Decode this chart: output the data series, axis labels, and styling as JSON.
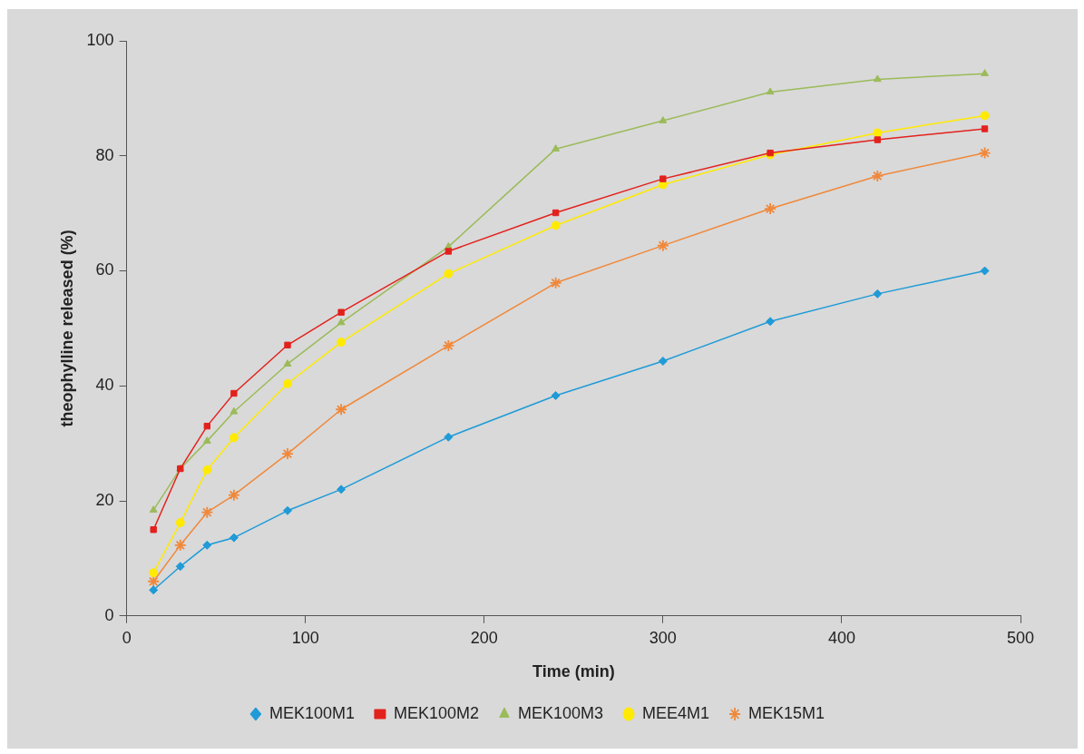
{
  "chart_data": {
    "type": "line",
    "xlabel": "Time (min)",
    "ylabel": "theophylline released (%)",
    "x": [
      15,
      30,
      45,
      60,
      90,
      120,
      180,
      240,
      300,
      360,
      420,
      480
    ],
    "series": [
      {
        "name": "MEK100M1",
        "color": "#1f9bd7",
        "marker": "diamond",
        "values": [
          4.5,
          8.6,
          12.3,
          13.6,
          18.3,
          22,
          31.1,
          38.3,
          44.3,
          51.2,
          56,
          60
        ]
      },
      {
        "name": "MEK100M2",
        "color": "#e3211c",
        "marker": "square",
        "values": [
          15,
          25.6,
          33,
          38.7,
          47.1,
          52.8,
          63.4,
          70.1,
          76,
          80.5,
          82.8,
          84.7
        ]
      },
      {
        "name": "MEK100M3",
        "color": "#9bbb59",
        "marker": "triangle",
        "values": [
          18.4,
          25.6,
          30.4,
          35.5,
          43.8,
          51,
          64.2,
          81.2,
          86.1,
          91.1,
          93.3,
          94.3
        ]
      },
      {
        "name": "MEE4M1",
        "color": "#ffea00",
        "marker": "circle",
        "values": [
          7.5,
          16.2,
          25.4,
          31,
          40.4,
          47.6,
          59.5,
          67.9,
          75,
          80.2,
          84,
          87
        ]
      },
      {
        "name": "MEK15M1",
        "color": "#f0883a",
        "marker": "cross",
        "values": [
          6,
          12.3,
          18,
          21,
          28.2,
          35.9,
          47,
          57.9,
          64.4,
          70.8,
          76.5,
          80.5
        ]
      }
    ],
    "xlim": [
      0,
      500
    ],
    "xticks": [
      0,
      100,
      200,
      300,
      400,
      500
    ],
    "ylim": [
      0,
      100
    ],
    "yticks": [
      0,
      20,
      40,
      60,
      80,
      100
    ],
    "grid": false,
    "legend": "bottom",
    "line_style": "solid"
  }
}
